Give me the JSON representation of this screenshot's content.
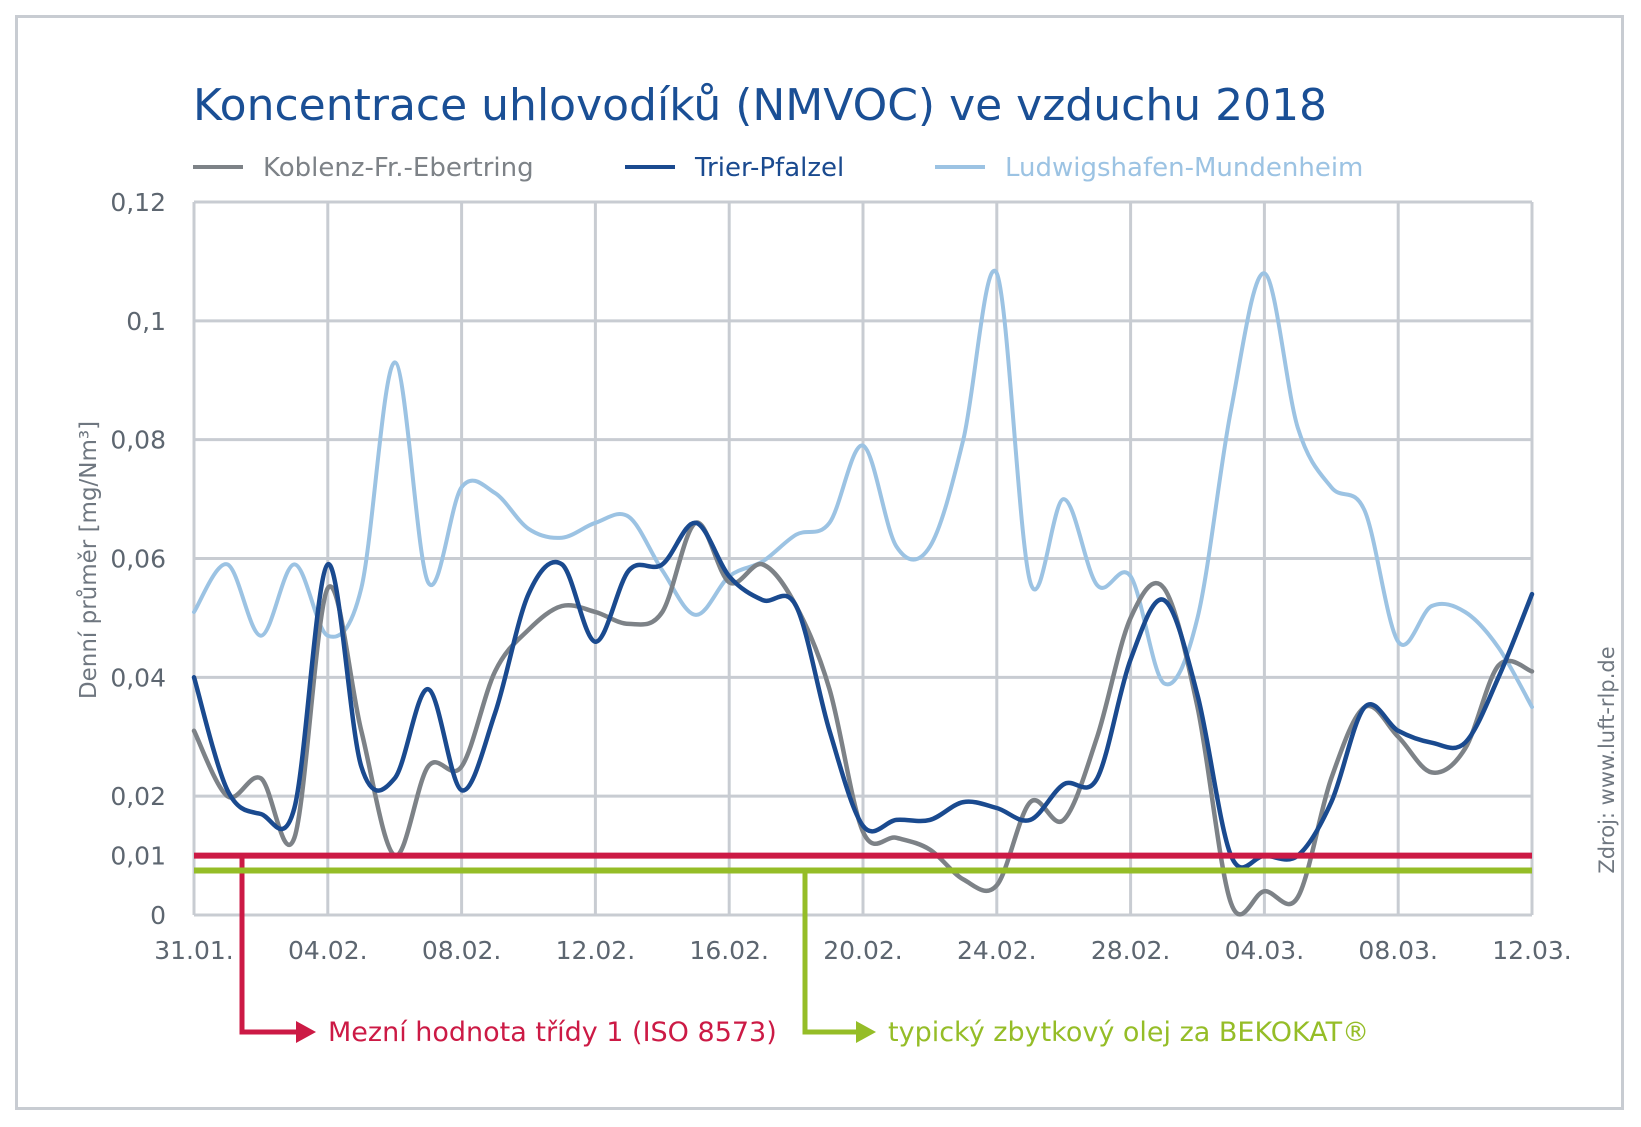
{
  "chart_data": {
    "type": "line",
    "title": "Koncentrace uhlovodíků (NMVOC) ve vzduchu 2018",
    "ylabel": "Denní průměr [mg/Nm³]",
    "source": "Zdroj: www.luft-rlp.de",
    "ylim": [
      0,
      0.12
    ],
    "yticks": [
      {
        "value": 0,
        "label": "0"
      },
      {
        "value": 0.01,
        "label": "0,01"
      },
      {
        "value": 0.02,
        "label": "0,02"
      },
      {
        "value": 0.04,
        "label": "0,04"
      },
      {
        "value": 0.06,
        "label": "0,06"
      },
      {
        "value": 0.08,
        "label": "0,08"
      },
      {
        "value": 0.1,
        "label": "0,1"
      },
      {
        "value": 0.12,
        "label": "0,12"
      }
    ],
    "xrange": [
      0,
      40
    ],
    "xticks": [
      {
        "value": 0,
        "label": "31.01."
      },
      {
        "value": 4,
        "label": "04.02."
      },
      {
        "value": 8,
        "label": "08.02."
      },
      {
        "value": 12,
        "label": "12.02."
      },
      {
        "value": 16,
        "label": "16.02."
      },
      {
        "value": 20,
        "label": "20.02."
      },
      {
        "value": 24,
        "label": "24.02."
      },
      {
        "value": 28,
        "label": "28.02."
      },
      {
        "value": 32,
        "label": "04.03."
      },
      {
        "value": 36,
        "label": "08.03."
      },
      {
        "value": 40,
        "label": "12.03."
      }
    ],
    "grid": true,
    "legend_position": "top",
    "series": [
      {
        "name": "Ludwigshafen-Mundenheim",
        "color": "#9cc3e3",
        "values": [
          [
            0,
            0.051
          ],
          [
            1,
            0.059
          ],
          [
            2,
            0.047
          ],
          [
            3,
            0.059
          ],
          [
            4,
            0.047
          ],
          [
            5,
            0.055
          ],
          [
            6,
            0.093
          ],
          [
            7,
            0.056
          ],
          [
            8,
            0.072
          ],
          [
            9,
            0.071
          ],
          [
            10,
            0.065
          ],
          [
            11,
            0.0635
          ],
          [
            12,
            0.066
          ],
          [
            13,
            0.067
          ],
          [
            14,
            0.058
          ],
          [
            15,
            0.0505
          ],
          [
            16,
            0.057
          ],
          [
            17,
            0.0595
          ],
          [
            18,
            0.064
          ],
          [
            19,
            0.066
          ],
          [
            20,
            0.079
          ],
          [
            21,
            0.062
          ],
          [
            22,
            0.062
          ],
          [
            23,
            0.08
          ],
          [
            24,
            0.108
          ],
          [
            25,
            0.056
          ],
          [
            26,
            0.07
          ],
          [
            27,
            0.0555
          ],
          [
            28,
            0.057
          ],
          [
            29,
            0.039
          ],
          [
            30,
            0.05
          ],
          [
            31,
            0.085
          ],
          [
            32,
            0.108
          ],
          [
            33,
            0.082
          ],
          [
            34,
            0.072
          ],
          [
            35,
            0.068
          ],
          [
            36,
            0.046
          ],
          [
            37,
            0.052
          ],
          [
            38,
            0.051
          ],
          [
            39,
            0.045
          ],
          [
            40,
            0.035
          ]
        ]
      },
      {
        "name": "Koblenz-Fr.-Ebertring",
        "color": "#7d8287",
        "values": [
          [
            0,
            0.031
          ],
          [
            1,
            0.02
          ],
          [
            2,
            0.023
          ],
          [
            3,
            0.013
          ],
          [
            4,
            0.055
          ],
          [
            5,
            0.031
          ],
          [
            6,
            0.01
          ],
          [
            7,
            0.025
          ],
          [
            8,
            0.025
          ],
          [
            9,
            0.041
          ],
          [
            10,
            0.048
          ],
          [
            11,
            0.052
          ],
          [
            12,
            0.051
          ],
          [
            13,
            0.049
          ],
          [
            14,
            0.051
          ],
          [
            15,
            0.066
          ],
          [
            16,
            0.056
          ],
          [
            17,
            0.059
          ],
          [
            18,
            0.052
          ],
          [
            19,
            0.038
          ],
          [
            20,
            0.014
          ],
          [
            21,
            0.013
          ],
          [
            22,
            0.011
          ],
          [
            23,
            0.006
          ],
          [
            24,
            0.005
          ],
          [
            25,
            0.019
          ],
          [
            26,
            0.016
          ],
          [
            27,
            0.03
          ],
          [
            28,
            0.05
          ],
          [
            29,
            0.055
          ],
          [
            30,
            0.035
          ],
          [
            31,
            0.002
          ],
          [
            32,
            0.004
          ],
          [
            33,
            0.003
          ],
          [
            34,
            0.023
          ],
          [
            35,
            0.035
          ],
          [
            36,
            0.03
          ],
          [
            37,
            0.024
          ],
          [
            38,
            0.028
          ],
          [
            39,
            0.042
          ],
          [
            40,
            0.041
          ]
        ]
      },
      {
        "name": "Trier-Pfalzel",
        "color": "#1a4a8f",
        "values": [
          [
            0,
            0.04
          ],
          [
            1,
            0.021
          ],
          [
            2,
            0.017
          ],
          [
            3,
            0.018
          ],
          [
            4,
            0.059
          ],
          [
            5,
            0.025
          ],
          [
            6,
            0.023
          ],
          [
            7,
            0.038
          ],
          [
            8,
            0.021
          ],
          [
            9,
            0.034
          ],
          [
            10,
            0.054
          ],
          [
            11,
            0.059
          ],
          [
            12,
            0.046
          ],
          [
            13,
            0.058
          ],
          [
            14,
            0.059
          ],
          [
            15,
            0.066
          ],
          [
            16,
            0.057
          ],
          [
            17,
            0.053
          ],
          [
            18,
            0.052
          ],
          [
            19,
            0.031
          ],
          [
            20,
            0.015
          ],
          [
            21,
            0.016
          ],
          [
            22,
            0.016
          ],
          [
            23,
            0.019
          ],
          [
            24,
            0.018
          ],
          [
            25,
            0.016
          ],
          [
            26,
            0.022
          ],
          [
            27,
            0.023
          ],
          [
            28,
            0.043
          ],
          [
            29,
            0.053
          ],
          [
            30,
            0.037
          ],
          [
            31,
            0.01
          ],
          [
            32,
            0.01
          ],
          [
            33,
            0.01
          ],
          [
            34,
            0.019
          ],
          [
            35,
            0.035
          ],
          [
            36,
            0.031
          ],
          [
            37,
            0.029
          ],
          [
            38,
            0.029
          ],
          [
            39,
            0.04
          ],
          [
            40,
            0.054
          ]
        ]
      }
    ],
    "reference_lines": [
      {
        "value": 0.01,
        "color": "#cc1a45",
        "label": "Mezní hodnota třídy 1 (ISO 8573)"
      },
      {
        "value": 0.0075,
        "color": "#95bd27",
        "label": "typický zbytkový olej za BEKOKAT®"
      }
    ]
  }
}
